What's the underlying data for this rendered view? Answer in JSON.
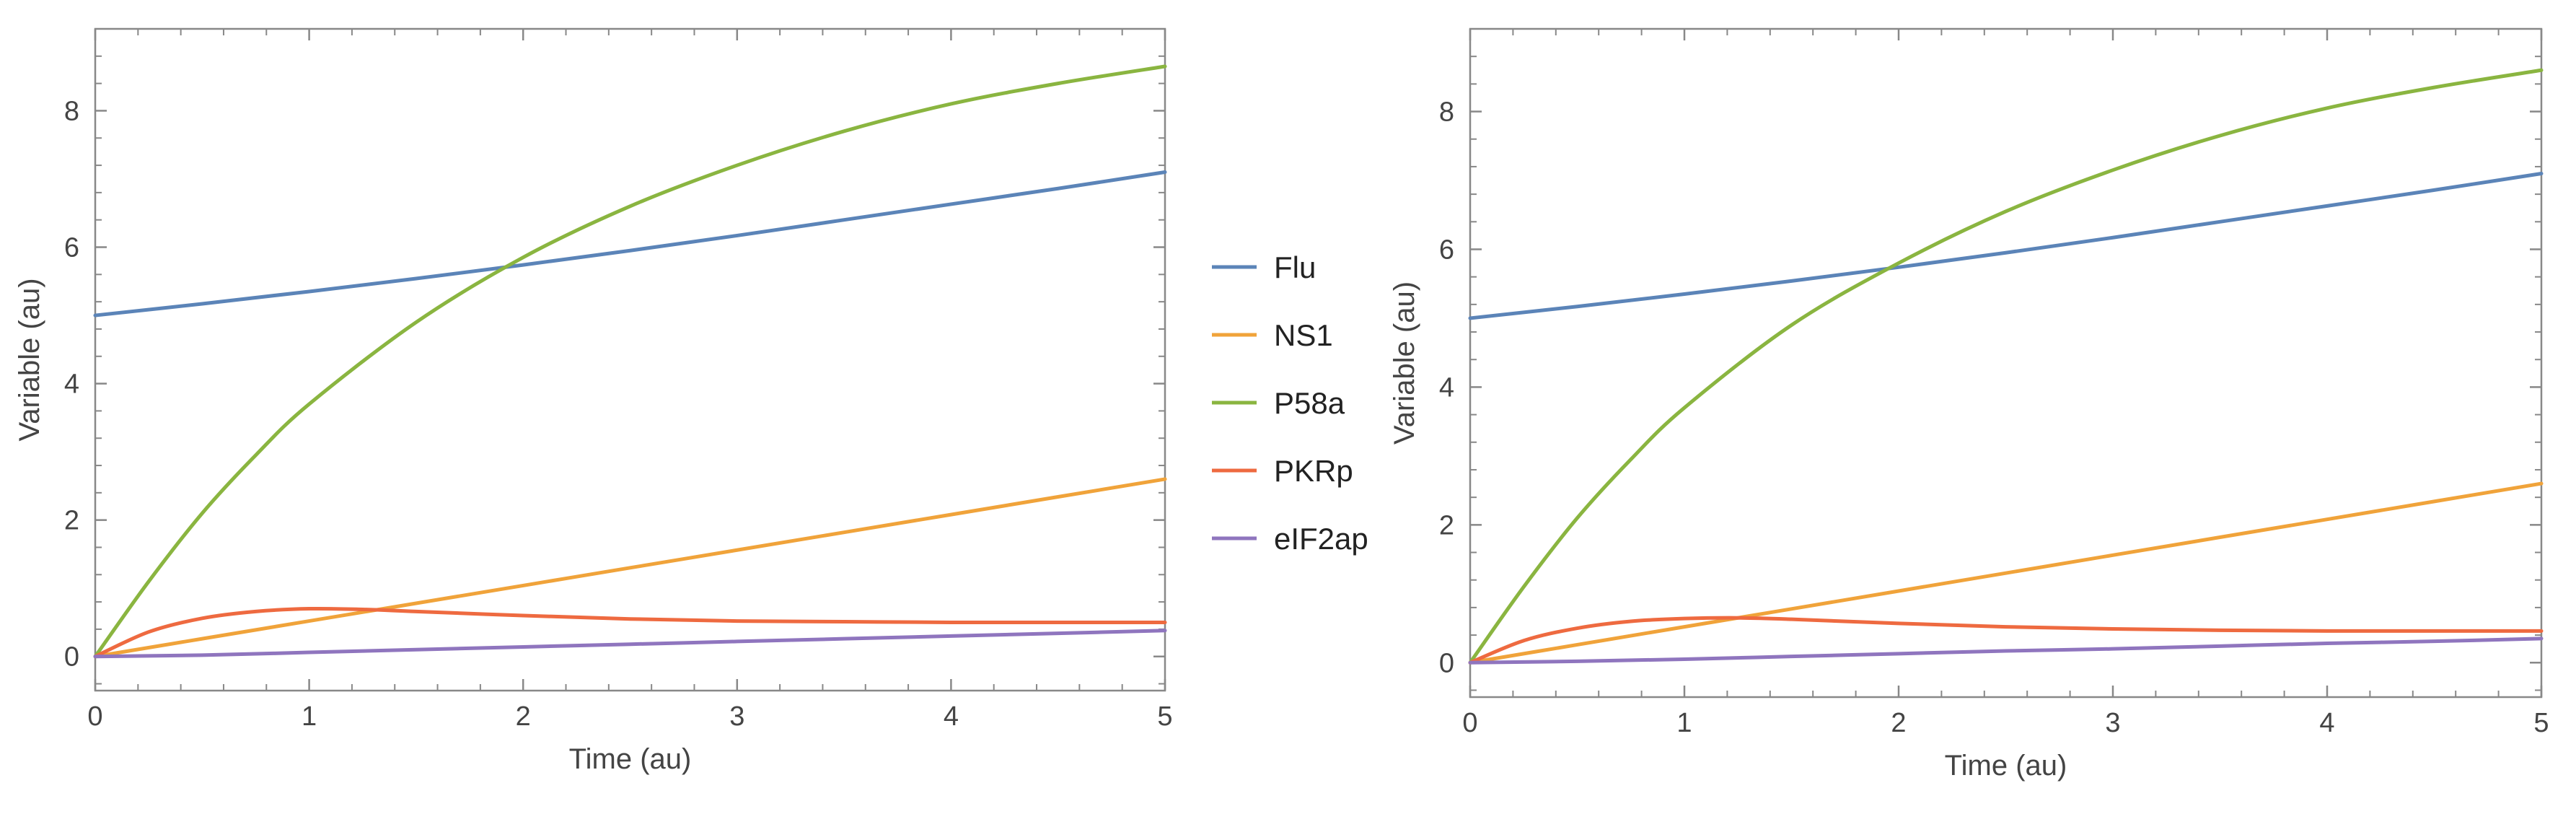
{
  "chart_data": [
    {
      "type": "line",
      "title": "",
      "xlabel": "Time (au)",
      "ylabel": "Variable (au)",
      "xlim": [
        0,
        5
      ],
      "ylim": [
        -0.5,
        9.2
      ],
      "xticks": [
        0,
        1,
        2,
        3,
        4,
        5
      ],
      "yticks": [
        0,
        2,
        4,
        6,
        8
      ],
      "grid": false,
      "series": [
        {
          "name": "Flu",
          "color": "#5b84b8",
          "x": [
            0,
            0.5,
            1,
            1.5,
            2,
            2.5,
            3,
            3.5,
            4,
            4.5,
            5
          ],
          "y": [
            5.0,
            5.17,
            5.35,
            5.54,
            5.74,
            5.95,
            6.17,
            6.4,
            6.63,
            6.86,
            7.1
          ]
        },
        {
          "name": "NS1",
          "color": "#f0a33a",
          "x": [
            0,
            0.5,
            1,
            1.5,
            2,
            2.5,
            3,
            3.5,
            4,
            4.5,
            5
          ],
          "y": [
            0.0,
            0.26,
            0.52,
            0.78,
            1.04,
            1.3,
            1.56,
            1.82,
            2.08,
            2.34,
            2.6
          ]
        },
        {
          "name": "P58a",
          "color": "#8ab540",
          "x": [
            0,
            0.25,
            0.5,
            0.75,
            1,
            1.5,
            2,
            2.5,
            3,
            3.5,
            4,
            4.5,
            5
          ],
          "y": [
            0.0,
            1.1,
            2.1,
            2.95,
            3.7,
            4.9,
            5.85,
            6.6,
            7.2,
            7.7,
            8.1,
            8.4,
            8.65
          ]
        },
        {
          "name": "PKRp",
          "color": "#ee6a40",
          "x": [
            0,
            0.25,
            0.5,
            0.75,
            1,
            1.25,
            1.5,
            2,
            2.5,
            3,
            3.5,
            4,
            4.5,
            5
          ],
          "y": [
            0.0,
            0.36,
            0.56,
            0.66,
            0.7,
            0.69,
            0.66,
            0.6,
            0.55,
            0.52,
            0.51,
            0.5,
            0.5,
            0.5
          ]
        },
        {
          "name": "eIF2ap",
          "color": "#8f75be",
          "x": [
            0,
            0.5,
            1,
            1.5,
            2,
            2.5,
            3,
            3.5,
            4,
            4.5,
            5
          ],
          "y": [
            0.0,
            0.02,
            0.06,
            0.1,
            0.14,
            0.18,
            0.22,
            0.26,
            0.3,
            0.34,
            0.38
          ]
        }
      ]
    },
    {
      "type": "line",
      "title": "",
      "xlabel": "Time (au)",
      "ylabel": "Variable (au)",
      "xlim": [
        0,
        5
      ],
      "ylim": [
        -0.5,
        9.2
      ],
      "xticks": [
        0,
        1,
        2,
        3,
        4,
        5
      ],
      "yticks": [
        0,
        2,
        4,
        6,
        8
      ],
      "grid": false,
      "series": [
        {
          "name": "Flu",
          "color": "#5b84b8",
          "x": [
            0,
            0.5,
            1,
            1.5,
            2,
            2.5,
            3,
            3.5,
            4,
            4.5,
            5
          ],
          "y": [
            5.0,
            5.17,
            5.35,
            5.54,
            5.74,
            5.95,
            6.17,
            6.4,
            6.63,
            6.86,
            7.1
          ]
        },
        {
          "name": "NS1",
          "color": "#f0a33a",
          "x": [
            0,
            0.5,
            1,
            1.5,
            2,
            2.5,
            3,
            3.5,
            4,
            4.5,
            5
          ],
          "y": [
            0.0,
            0.26,
            0.52,
            0.78,
            1.04,
            1.3,
            1.56,
            1.82,
            2.08,
            2.34,
            2.6
          ]
        },
        {
          "name": "P58a",
          "color": "#8ab540",
          "x": [
            0,
            0.25,
            0.5,
            0.75,
            1,
            1.5,
            2,
            2.5,
            3,
            3.5,
            4,
            4.5,
            5
          ],
          "y": [
            0.0,
            1.1,
            2.1,
            2.95,
            3.7,
            4.9,
            5.8,
            6.55,
            7.15,
            7.65,
            8.05,
            8.35,
            8.6
          ]
        },
        {
          "name": "PKRp",
          "color": "#ee6a40",
          "x": [
            0,
            0.25,
            0.5,
            0.75,
            1,
            1.25,
            1.5,
            2,
            2.5,
            3,
            3.5,
            4,
            4.5,
            5
          ],
          "y": [
            0.0,
            0.32,
            0.5,
            0.6,
            0.64,
            0.65,
            0.63,
            0.57,
            0.52,
            0.49,
            0.47,
            0.46,
            0.46,
            0.46
          ]
        },
        {
          "name": "eIF2ap",
          "color": "#8f75be",
          "x": [
            0,
            0.5,
            1,
            1.5,
            2,
            2.5,
            3,
            3.5,
            4,
            4.5,
            5
          ],
          "y": [
            0.0,
            0.02,
            0.05,
            0.09,
            0.13,
            0.17,
            0.2,
            0.24,
            0.28,
            0.31,
            0.35
          ]
        }
      ]
    }
  ],
  "legend": {
    "placement": "between-charts",
    "entries": [
      {
        "name": "Flu",
        "color": "#5b84b8"
      },
      {
        "name": "NS1",
        "color": "#f0a33a"
      },
      {
        "name": "P58a",
        "color": "#8ab540"
      },
      {
        "name": "PKRp",
        "color": "#ee6a40"
      },
      {
        "name": "eIF2ap",
        "color": "#8f75be"
      }
    ]
  },
  "axis_color": "#888888"
}
